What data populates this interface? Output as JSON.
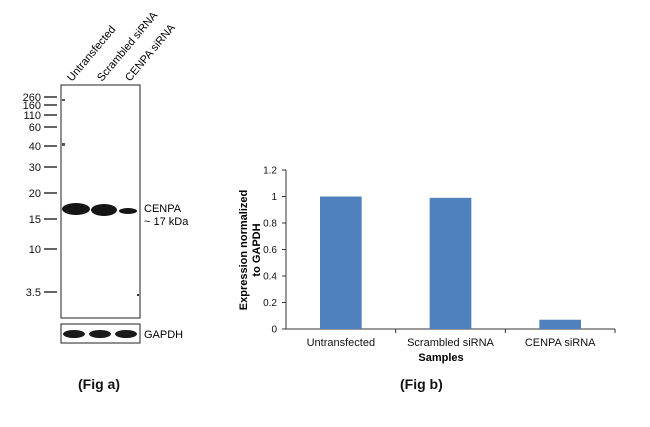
{
  "fig_a": {
    "caption": "(Fig a)",
    "lane_labels": [
      "Untransfected",
      "Scrambled siRNA",
      "CENPA siRNA"
    ],
    "ladder_kda": [
      "260",
      "160",
      "110",
      "60",
      "40",
      "30",
      "20",
      "15",
      "10",
      "3.5"
    ],
    "band_label": "CENPA",
    "band_size": "~ 17 kDa",
    "loading_control": "GAPDH",
    "band_intensity": [
      1,
      1,
      0.06
    ],
    "colors": {
      "band": "#151515",
      "membrane": "#ffffff",
      "border": "#222222"
    }
  },
  "fig_b": {
    "caption": "(Fig b)"
  },
  "chart_data": {
    "type": "bar",
    "categories": [
      "Untransfected",
      "Scrambled siRNA",
      "CENPA siRNA"
    ],
    "values": [
      1.0,
      0.99,
      0.07
    ],
    "xlabel": "Samples",
    "ylabel": "Expression normalized to GAPDH",
    "ylim": [
      0,
      1.2
    ],
    "yticks": [
      "0",
      "0.2",
      "0.4",
      "0.6",
      "0.8",
      "1",
      "1.2"
    ],
    "grid": false,
    "legend": "none",
    "bar_color": "#4f81bd"
  }
}
